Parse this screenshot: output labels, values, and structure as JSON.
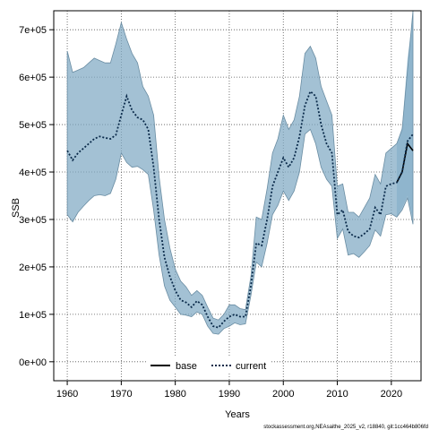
{
  "chart_data": {
    "type": "line",
    "xlabel": "Years",
    "ylabel": "SSB",
    "xlim": [
      1957.5,
      2025.5
    ],
    "ylim": [
      -40000,
      740000
    ],
    "xticks": [
      1960,
      1970,
      1980,
      1990,
      2000,
      2010,
      2020
    ],
    "xtick_labels": [
      "1960",
      "1970",
      "1980",
      "1990",
      "2000",
      "2010",
      "2020"
    ],
    "yticks": [
      0,
      100000,
      200000,
      300000,
      400000,
      500000,
      600000,
      700000
    ],
    "ytick_labels": [
      "0e+00",
      "1e+05",
      "2e+05",
      "3e+05",
      "4e+05",
      "5e+05",
      "6e+05",
      "7e+05"
    ],
    "grid": true,
    "grid_style": "dotted",
    "legend_position": "bottom-center",
    "legend": [
      {
        "label": "base",
        "style": "solid",
        "color": "#000000"
      },
      {
        "label": "current",
        "style": "dotted",
        "color": "#0a2a4a"
      }
    ],
    "colors": {
      "band_current": "#7fa9c4",
      "band_base": "#a9cde3",
      "band_overlap": "#9bbfd3",
      "base_line": "#000000",
      "current_line": "#0a2a4a"
    },
    "footnote": "stockassessment.org,NEAsaithe_2025_v2, r18840, git:1cc464b806fd",
    "series": [
      {
        "name": "current",
        "x": [
          1960,
          1961,
          1962,
          1963,
          1964,
          1965,
          1966,
          1967,
          1968,
          1969,
          1970,
          1971,
          1972,
          1973,
          1974,
          1975,
          1976,
          1977,
          1978,
          1979,
          1980,
          1981,
          1982,
          1983,
          1984,
          1985,
          1986,
          1987,
          1988,
          1989,
          1990,
          1991,
          1992,
          1993,
          1994,
          1995,
          1996,
          1997,
          1998,
          1999,
          2000,
          2001,
          2002,
          2003,
          2004,
          2005,
          2006,
          2007,
          2008,
          2009,
          2010,
          2011,
          2012,
          2013,
          2014,
          2015,
          2016,
          2017,
          2018,
          2019,
          2020,
          2021,
          2022,
          2023,
          2024
        ],
        "y": [
          445000,
          425000,
          440000,
          450000,
          460000,
          470000,
          475000,
          472000,
          470000,
          478000,
          520000,
          560000,
          530000,
          515000,
          510000,
          490000,
          410000,
          300000,
          220000,
          180000,
          150000,
          130000,
          125000,
          115000,
          128000,
          120000,
          95000,
          75000,
          72000,
          85000,
          95000,
          100000,
          95000,
          95000,
          160000,
          250000,
          245000,
          300000,
          370000,
          400000,
          430000,
          410000,
          430000,
          475000,
          540000,
          570000,
          560000,
          500000,
          460000,
          440000,
          310000,
          320000,
          275000,
          265000,
          262000,
          270000,
          280000,
          325000,
          310000,
          370000,
          375000,
          378000,
          400000,
          465000,
          480000
        ],
        "lower": [
          310000,
          295000,
          315000,
          328000,
          340000,
          350000,
          352000,
          350000,
          355000,
          385000,
          440000,
          420000,
          410000,
          412000,
          405000,
          395000,
          320000,
          225000,
          160000,
          130000,
          115000,
          100000,
          98000,
          95000,
          105000,
          100000,
          75000,
          60000,
          58000,
          70000,
          75000,
          82000,
          78000,
          80000,
          140000,
          210000,
          200000,
          250000,
          310000,
          330000,
          360000,
          340000,
          360000,
          400000,
          480000,
          490000,
          460000,
          410000,
          385000,
          370000,
          260000,
          280000,
          225000,
          228000,
          220000,
          232000,
          245000,
          278000,
          265000,
          310000,
          312000,
          305000,
          320000,
          345000,
          290000
        ],
        "upper": [
          655000,
          610000,
          615000,
          620000,
          630000,
          640000,
          635000,
          630000,
          630000,
          670000,
          715000,
          680000,
          650000,
          630000,
          580000,
          560000,
          520000,
          390000,
          300000,
          240000,
          195000,
          170000,
          158000,
          140000,
          150000,
          140000,
          115000,
          92000,
          88000,
          100000,
          120000,
          120000,
          112000,
          110000,
          180000,
          305000,
          300000,
          365000,
          440000,
          470000,
          520000,
          490000,
          510000,
          560000,
          650000,
          665000,
          640000,
          580000,
          550000,
          520000,
          370000,
          375000,
          315000,
          315000,
          305000,
          325000,
          345000,
          395000,
          375000,
          440000,
          450000,
          460000,
          490000,
          615000,
          740000
        ]
      },
      {
        "name": "base",
        "x": [
          2021,
          2022,
          2023,
          2024
        ],
        "y": [
          378000,
          400000,
          460000,
          445000
        ],
        "lower": [
          305000,
          325000,
          350000,
          300000
        ],
        "upper": [
          460000,
          495000,
          640000,
          730000
        ]
      }
    ]
  }
}
